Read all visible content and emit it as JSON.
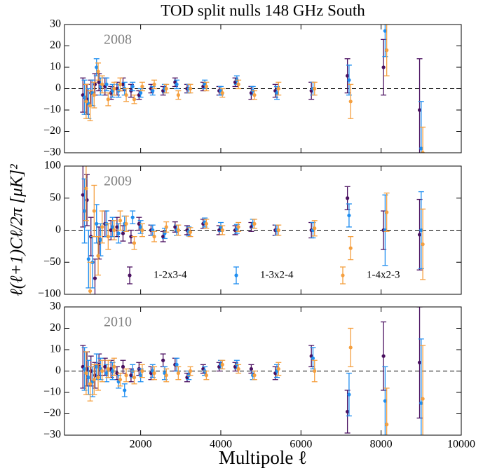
{
  "chart_data": [
    {
      "type": "errorbar",
      "title": "TOD split nulls 148 GHz South",
      "annotation": "2008",
      "xlim": [
        100,
        10000
      ],
      "xticks": [
        2000,
        4000,
        6000,
        8000,
        10000
      ],
      "ylim": [
        -30,
        30
      ],
      "yticks": [
        {
          "value": -30,
          "label": "−30"
        },
        {
          "value": -20,
          "label": "−20"
        },
        {
          "value": -10,
          "label": "−10"
        },
        0,
        10,
        20,
        30
      ],
      "series": [
        {
          "color": "#4a1060",
          "x": [
            560,
            660,
            760,
            860,
            960,
            1110,
            1260,
            1410,
            1560,
            1760,
            1960,
            2260,
            2560,
            2860,
            3160,
            3560,
            3960,
            4360,
            4760,
            5360,
            6260,
            7160,
            8060,
            8960
          ],
          "values": [
            -3,
            -5,
            -2,
            2,
            3,
            1,
            -2,
            0,
            2,
            -1,
            -3,
            0,
            -1,
            3,
            0,
            1,
            -1,
            3,
            -2,
            -1,
            -1,
            6,
            10,
            -10
          ],
          "errors": [
            8,
            7,
            6,
            5,
            4,
            4,
            3,
            3,
            3,
            3,
            2,
            2,
            2,
            2,
            2,
            2,
            2,
            2,
            3,
            3,
            4,
            8,
            13,
            24
          ]
        },
        {
          "color": "#1f8ef0",
          "x": [
            600,
            700,
            800,
            900,
            1000,
            1150,
            1300,
            1450,
            1600,
            1800,
            2000,
            2300,
            2600,
            2900,
            3200,
            3600,
            4000,
            4400,
            4800,
            5400,
            6300,
            7200,
            8100,
            9000
          ],
          "values": [
            -4,
            -7,
            -2,
            10,
            1,
            2,
            -1,
            -1,
            0,
            1,
            -2,
            -1,
            0,
            2,
            0,
            2,
            -1,
            4,
            -1,
            -2,
            0,
            4,
            27,
            -28
          ],
          "errors": [
            8,
            7,
            6,
            4,
            4,
            3,
            3,
            3,
            3,
            2,
            2,
            2,
            2,
            2,
            2,
            2,
            2,
            2,
            2,
            3,
            3,
            7,
            12,
            22
          ]
        },
        {
          "color": "#f5a040",
          "x": [
            640,
            740,
            840,
            940,
            1040,
            1190,
            1340,
            1490,
            1640,
            1840,
            2040,
            2340,
            2640,
            2940,
            3240,
            3640,
            4040,
            4440,
            4840,
            5440,
            6340,
            7240,
            8140,
            9040
          ],
          "values": [
            -6,
            -8,
            -3,
            8,
            2,
            -5,
            0,
            2,
            -3,
            -5,
            1,
            2,
            0,
            -3,
            0,
            1,
            -2,
            2,
            -3,
            0,
            0,
            -6,
            18,
            -30
          ],
          "errors": [
            8,
            7,
            6,
            4,
            4,
            3,
            3,
            3,
            3,
            2,
            2,
            2,
            2,
            2,
            2,
            2,
            2,
            2,
            2,
            3,
            3,
            8,
            12,
            12
          ]
        }
      ]
    },
    {
      "type": "errorbar",
      "annotation": "2009",
      "y_label": "ℓ(ℓ+1)Cℓ/2π [μK]²",
      "legend": "lower center",
      "xlim": [
        100,
        10000
      ],
      "xticks": [
        2000,
        4000,
        6000,
        8000,
        10000
      ],
      "ylim": [
        -100,
        100
      ],
      "yticks": [
        {
          "value": -100,
          "label": "−100"
        },
        {
          "value": -50,
          "label": "−50"
        },
        0,
        50,
        100
      ],
      "series": [
        {
          "name": "1-2x3-4",
          "color": "#4a1060",
          "x": [
            560,
            660,
            760,
            860,
            960,
            1110,
            1260,
            1410,
            1560,
            1760,
            1960,
            2260,
            2560,
            2860,
            3160,
            3560,
            3960,
            4360,
            4760,
            5360,
            6260,
            7160,
            8060,
            8960
          ],
          "values": [
            55,
            47,
            -10,
            -75,
            -20,
            10,
            0,
            5,
            -5,
            -10,
            10,
            0,
            -10,
            5,
            0,
            10,
            0,
            0,
            5,
            0,
            0,
            50,
            0,
            -7
          ],
          "errors": [
            50,
            40,
            30,
            30,
            25,
            20,
            15,
            15,
            12,
            10,
            10,
            8,
            8,
            8,
            7,
            7,
            7,
            7,
            7,
            8,
            12,
            18,
            30,
            55
          ]
        },
        {
          "name": "1-3x2-4",
          "color": "#1f8ef0",
          "x": [
            600,
            700,
            800,
            900,
            1000,
            1150,
            1300,
            1450,
            1600,
            1800,
            2000,
            2300,
            2600,
            2900,
            3200,
            3600,
            4000,
            4400,
            4800,
            5400,
            6300,
            7200,
            8100,
            9000
          ],
          "values": [
            30,
            -45,
            -50,
            10,
            -15,
            10,
            5,
            -5,
            10,
            20,
            5,
            0,
            -5,
            0,
            -2,
            12,
            5,
            2,
            10,
            0,
            0,
            23,
            0,
            0
          ],
          "errors": [
            50,
            45,
            40,
            30,
            25,
            20,
            15,
            15,
            12,
            10,
            10,
            8,
            8,
            8,
            7,
            7,
            7,
            7,
            7,
            8,
            12,
            18,
            55,
            60
          ]
        },
        {
          "name": "1-4x2-3",
          "color": "#f5a040",
          "x": [
            640,
            740,
            840,
            940,
            1040,
            1190,
            1340,
            1490,
            1640,
            1840,
            2040,
            2340,
            2640,
            2940,
            3240,
            3640,
            4040,
            4440,
            4840,
            5440,
            6340,
            7240,
            8140,
            9040
          ],
          "values": [
            65,
            -95,
            30,
            -40,
            5,
            -10,
            0,
            15,
            10,
            -20,
            0,
            -10,
            5,
            0,
            -3,
            10,
            0,
            5,
            10,
            0,
            3,
            -28,
            28,
            -22
          ],
          "errors": [
            50,
            45,
            40,
            30,
            25,
            20,
            15,
            15,
            12,
            10,
            10,
            8,
            8,
            8,
            7,
            7,
            7,
            7,
            7,
            8,
            12,
            18,
            30,
            55
          ]
        }
      ]
    },
    {
      "type": "errorbar",
      "annotation": "2010",
      "x_label": "Multipole ℓ",
      "xlim": [
        100,
        10000
      ],
      "xticks": [
        2000,
        4000,
        6000,
        8000,
        10000
      ],
      "ylim": [
        -30,
        30
      ],
      "yticks": [
        {
          "value": -30,
          "label": "−30"
        },
        {
          "value": -20,
          "label": "−20"
        },
        {
          "value": -10,
          "label": "−10"
        },
        0,
        10,
        20,
        30
      ],
      "series": [
        {
          "color": "#4a1060",
          "x": [
            560,
            660,
            760,
            860,
            960,
            1110,
            1260,
            1410,
            1560,
            1760,
            1960,
            2260,
            2560,
            2860,
            3160,
            3560,
            3960,
            4360,
            4760,
            5360,
            6260,
            7160,
            8060,
            8960
          ],
          "values": [
            2,
            1,
            0,
            -2,
            3,
            2,
            1,
            -1,
            2,
            -2,
            1,
            -1,
            5,
            3,
            -3,
            1,
            2,
            2,
            1,
            -1,
            7,
            -19,
            7,
            4
          ],
          "errors": [
            10,
            8,
            7,
            6,
            5,
            4,
            4,
            3,
            3,
            3,
            3,
            3,
            3,
            3,
            2,
            2,
            2,
            2,
            2,
            3,
            5,
            10,
            16,
            26
          ]
        },
        {
          "color": "#1f8ef0",
          "x": [
            600,
            700,
            800,
            900,
            1000,
            1150,
            1300,
            1450,
            1600,
            1800,
            2000,
            2300,
            2600,
            2900,
            3200,
            3600,
            4000,
            4400,
            4800,
            5400,
            6300,
            7200,
            8100,
            9000
          ],
          "values": [
            1,
            -3,
            -5,
            2,
            1,
            -1,
            0,
            -5,
            -9,
            0,
            -2,
            0,
            -1,
            3,
            -2,
            0,
            3,
            3,
            -2,
            0,
            6,
            -11,
            -14,
            -15
          ],
          "errors": [
            10,
            8,
            7,
            6,
            5,
            4,
            4,
            3,
            3,
            3,
            3,
            3,
            3,
            3,
            2,
            2,
            2,
            2,
            2,
            3,
            5,
            10,
            16,
            30
          ]
        },
        {
          "color": "#f5a040",
          "x": [
            640,
            740,
            840,
            940,
            1040,
            1190,
            1340,
            1490,
            1640,
            1840,
            2040,
            2340,
            2640,
            2940,
            3240,
            3640,
            4040,
            4440,
            4840,
            5440,
            6340,
            7240,
            8140,
            9040
          ],
          "values": [
            -1,
            -6,
            -4,
            -3,
            0,
            1,
            2,
            -4,
            -2,
            -3,
            0,
            -1,
            -2,
            -1,
            0,
            -2,
            3,
            1,
            -2,
            1,
            0,
            11,
            -25,
            -13
          ],
          "errors": [
            10,
            8,
            7,
            6,
            5,
            4,
            4,
            3,
            3,
            3,
            3,
            3,
            3,
            3,
            2,
            2,
            2,
            2,
            2,
            3,
            5,
            9,
            17,
            25
          ]
        }
      ]
    }
  ]
}
